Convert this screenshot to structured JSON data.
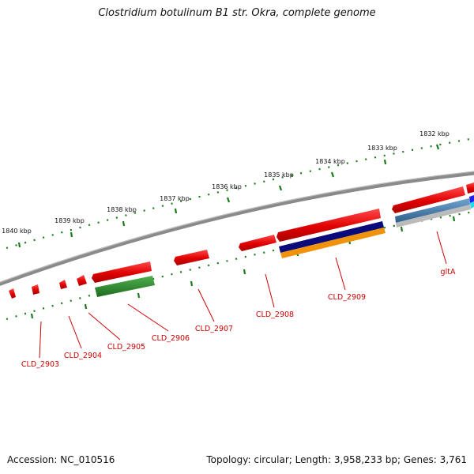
{
  "title": "Clostridium botulinum B1 str. Okra, complete genome",
  "footer": {
    "accession": "Accession: NC_010516",
    "summary": "Topology: circular; Length: 3,958,233 bp; Genes: 3,761"
  },
  "colors": {
    "backbone": "#888888",
    "tick": "#1a7a1a",
    "gene_forward": "#ee1111",
    "gene_reverse_green": "#2e8b2e",
    "navy": "#0a0a7a",
    "orange": "#f0930a",
    "steelblue": "#4682b4",
    "silver": "#bbbbbb",
    "label": "#cc0000"
  },
  "scale_labels": [
    "1832 kbp",
    "1833 kbp",
    "1834 kbp",
    "1835 kbp",
    "1836 kbp",
    "1837 kbp",
    "1838 kbp",
    "1839 kbp",
    "1840 kbp"
  ],
  "gene_labels": [
    "CLD_2903",
    "CLD_2904",
    "CLD_2905",
    "CLD_2906",
    "CLD_2907",
    "CLD_2908",
    "CLD_2909",
    "gltA"
  ]
}
